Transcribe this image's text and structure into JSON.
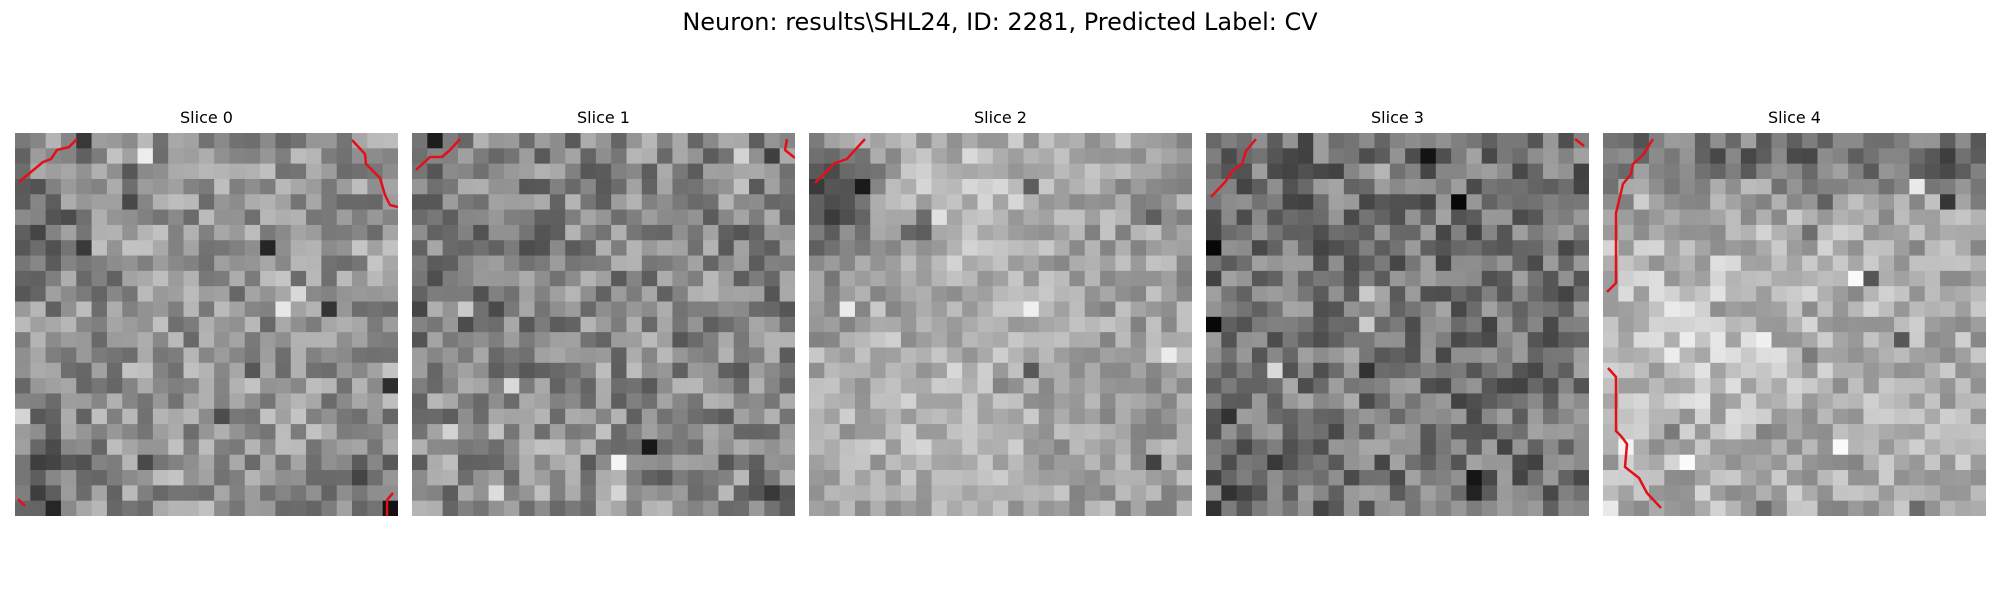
{
  "figure": {
    "title": "Neuron: results\\SHL24, ID: 2281, Predicted Label: CV"
  },
  "slices": [
    {
      "title": "Slice 0"
    },
    {
      "title": "Slice 1"
    },
    {
      "title": "Slice 2"
    },
    {
      "title": "Slice 3"
    },
    {
      "title": "Slice 4"
    }
  ],
  "contour_color": "#e3101b",
  "colormap": "gray"
}
